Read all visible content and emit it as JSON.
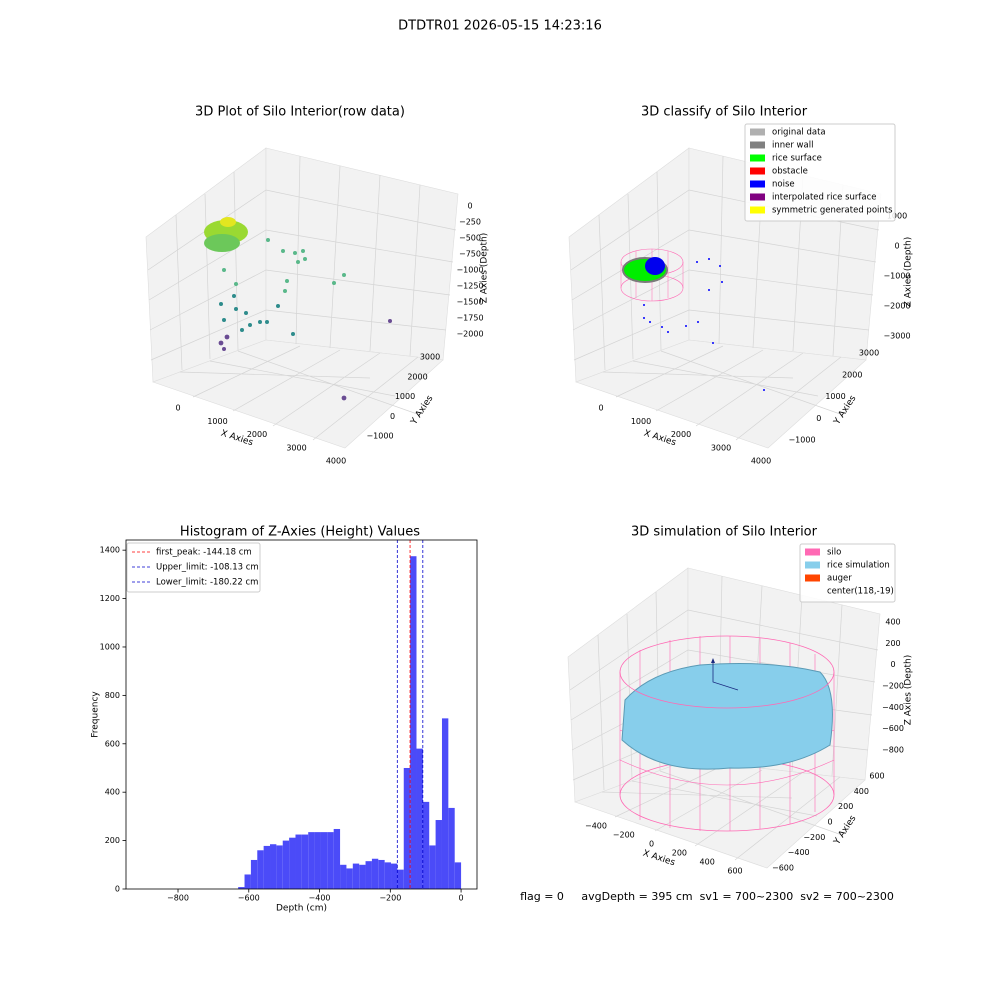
{
  "title": "DTDTR01 2026-05-15 14:23:16",
  "footer": "flag = 0     avgDepth = 395 cm  sv1 = 700~2300  sv2 = 700~2300",
  "chart_data": [
    {
      "type": "scatter3d",
      "title": "3D Plot of Silo Interior(row data)",
      "xlabel": "X Axies",
      "ylabel": "Y Axies",
      "zlabel": "Z Axies (Depth)",
      "xticks": [
        0,
        1000,
        2000,
        3000,
        4000
      ],
      "yticks": [
        {
          "value": -1000,
          "label": "−1000"
        },
        0,
        1000,
        2000,
        3000
      ],
      "zticks": [
        0,
        {
          "value": -250,
          "label": "−250"
        },
        {
          "value": -500,
          "label": "−500"
        },
        {
          "value": -750,
          "label": "−750"
        },
        {
          "value": -1000,
          "label": "−1000"
        },
        {
          "value": -1250,
          "label": "−1250"
        },
        {
          "value": -1500,
          "label": "−1500"
        },
        {
          "value": -1750,
          "label": "−1750"
        },
        {
          "value": -2000,
          "label": "−2000"
        }
      ]
    },
    {
      "type": "scatter3d",
      "title": "3D classify of Silo Interior",
      "xlabel": "X Axies",
      "ylabel": "Y Axies",
      "zlabel": "Z Axies (Depth)",
      "xticks": [
        0,
        1000,
        2000,
        3000,
        4000
      ],
      "yticks": [
        {
          "value": -1000,
          "label": "−1000"
        },
        0,
        1000,
        2000,
        3000
      ],
      "zticks": [
        1000,
        0,
        {
          "value": -1000,
          "label": "−1000"
        },
        {
          "value": -2000,
          "label": "−2000"
        },
        {
          "value": -3000,
          "label": "−3000"
        }
      ],
      "legend": [
        {
          "name": "original data",
          "color": "#b0b0b0"
        },
        {
          "name": "inner wall",
          "color": "#808080"
        },
        {
          "name": "rice surface",
          "color": "#00ff00"
        },
        {
          "name": "obstacle",
          "color": "#ff0000"
        },
        {
          "name": "noise",
          "color": "#0000ff"
        },
        {
          "name": "interpolated rice surface",
          "color": "#800080"
        },
        {
          "name": "symmetric generated points",
          "color": "#ffff00"
        }
      ]
    },
    {
      "type": "histogram",
      "title": "Histogram of Z-Axies (Height) Values",
      "xlabel": "Depth (cm)",
      "ylabel": "Frequency",
      "color": "#4b4bf8",
      "bins": [
        -630,
        -612,
        -594,
        -576,
        -558,
        -540,
        -522,
        -504,
        -486,
        -468,
        -450,
        -432,
        -414,
        -396,
        -378,
        -360,
        -342,
        -324,
        -306,
        -288,
        -270,
        -252,
        -234,
        -216,
        -198,
        -180,
        -162,
        -144,
        -126,
        -108,
        -90,
        -72,
        -54,
        -36,
        -18,
        0
      ],
      "values": [
        8,
        60,
        120,
        160,
        178,
        185,
        180,
        200,
        212,
        225,
        225,
        235,
        235,
        235,
        235,
        248,
        100,
        85,
        105,
        100,
        115,
        125,
        120,
        110,
        105,
        80,
        500,
        1375,
        580,
        360,
        180,
        285,
        705,
        335,
        110
      ],
      "xlim": [
        -947,
        45
      ],
      "ylim": [
        0,
        1442
      ],
      "xticks": [
        {
          "value": -800,
          "label": "−800"
        },
        {
          "value": -600,
          "label": "−600"
        },
        {
          "value": -400,
          "label": "−400"
        },
        {
          "value": -200,
          "label": "−200"
        },
        0
      ],
      "yticks": [
        0,
        200,
        400,
        600,
        800,
        1000,
        1200,
        1400
      ],
      "lines": [
        {
          "name": "first_peak: -144.18 cm",
          "value": -144.18,
          "color": "#ff0000"
        },
        {
          "name": "Upper_limit: -108.13 cm",
          "value": -108.13,
          "color": "#0000cc"
        },
        {
          "name": "Lower_limit: -180.22 cm",
          "value": -180.22,
          "color": "#0000cc"
        }
      ]
    },
    {
      "type": "surface3d",
      "title": "3D simulation of Silo Interior",
      "xlabel": "X Axies",
      "ylabel": "Y Axies",
      "zlabel": "Z Axies (Depth)",
      "xticks": [
        {
          "value": -400,
          "label": "−400"
        },
        {
          "value": -200,
          "label": "−200"
        },
        0,
        200,
        400,
        600
      ],
      "yticks": [
        {
          "value": -600,
          "label": "−600"
        },
        {
          "value": -400,
          "label": "−400"
        },
        {
          "value": -200,
          "label": "−200"
        },
        0,
        200,
        400,
        600
      ],
      "zticks": [
        400,
        200,
        0,
        {
          "value": -200,
          "label": "−200"
        },
        {
          "value": -400,
          "label": "−400"
        },
        {
          "value": -600,
          "label": "−600"
        },
        {
          "value": -800,
          "label": "−800"
        }
      ],
      "legend": [
        {
          "name": "silo",
          "color": "#ff69b4"
        },
        {
          "name": "rice simulation",
          "color": "#87ceeb"
        },
        {
          "name": "auger",
          "color": "#ff4500"
        },
        {
          "name": "center(118,-19)",
          "color": "#ffffff"
        }
      ]
    }
  ]
}
